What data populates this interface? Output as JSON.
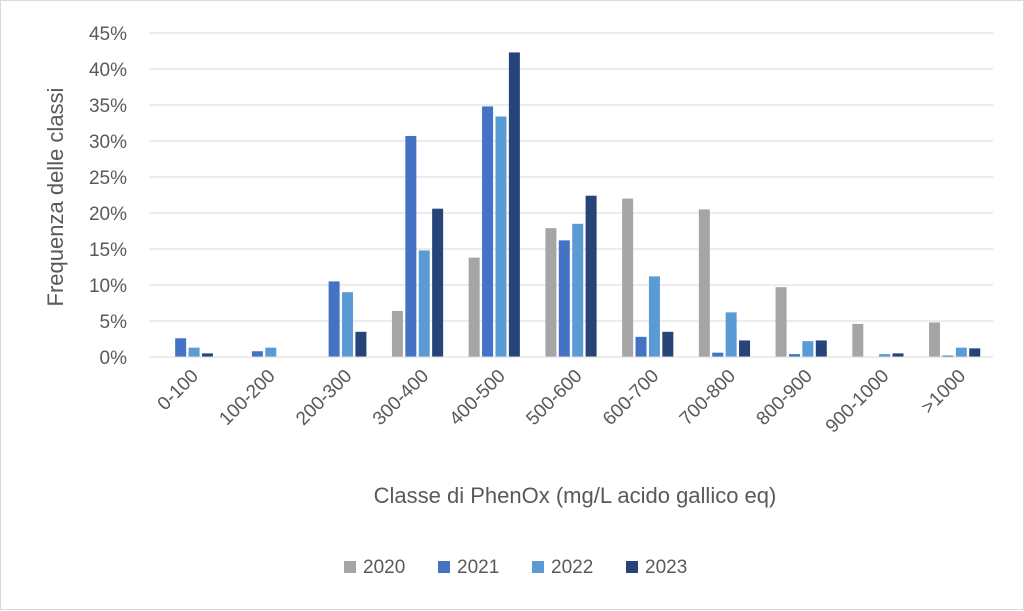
{
  "chart_data": {
    "type": "bar",
    "xlabel": "Classe di PhenOx (mg/L acido gallico eq)",
    "ylabel": "Frequenza delle classi",
    "ylim": [
      0,
      45
    ],
    "yticks": [
      "0%",
      "5%",
      "10%",
      "15%",
      "20%",
      "25%",
      "30%",
      "35%",
      "40%",
      "45%"
    ],
    "grid": true,
    "legend_position": "bottom",
    "categories": [
      "0-100",
      "100-200",
      "200-300",
      "300-400",
      "400-500",
      "500-600",
      "600-700",
      "700-800",
      "800-900",
      "900-1000",
      ">1000"
    ],
    "series": [
      {
        "name": "2020",
        "color": "#a5a5a5",
        "values": [
          0,
          0,
          0,
          6.4,
          13.8,
          17.9,
          22.0,
          20.5,
          9.7,
          4.6,
          4.8
        ]
      },
      {
        "name": "2021",
        "color": "#4472c4",
        "values": [
          2.6,
          0.8,
          10.5,
          30.7,
          34.8,
          16.2,
          2.8,
          0.6,
          0.4,
          0,
          0.2
        ]
      },
      {
        "name": "2022",
        "color": "#5b9bd5",
        "values": [
          1.3,
          1.3,
          9.0,
          14.8,
          33.4,
          18.5,
          11.2,
          6.2,
          2.2,
          0.4,
          1.3
        ]
      },
      {
        "name": "2023",
        "color": "#264478",
        "values": [
          0.5,
          0,
          3.5,
          20.6,
          42.3,
          22.4,
          3.5,
          2.3,
          2.3,
          0.5,
          1.2
        ]
      }
    ]
  }
}
